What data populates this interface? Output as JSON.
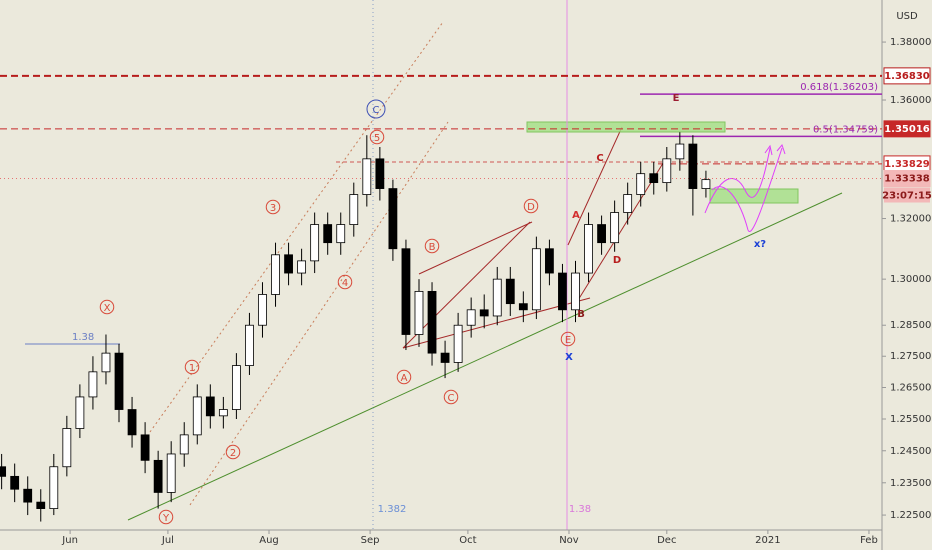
{
  "chart_data": {
    "type": "candlestick",
    "currency": "USD",
    "log": true,
    "ylim": [
      1.2204,
      1.3947
    ],
    "yticks": [
      {
        "value": 1.38,
        "label": "1.38000"
      },
      {
        "value": 1.36,
        "label": "1.36000"
      },
      {
        "value": 1.32,
        "label": "1.32000"
      },
      {
        "value": 1.3,
        "label": "1.30000"
      },
      {
        "value": 1.285,
        "label": "1.28500"
      },
      {
        "value": 1.275,
        "label": "1.27500"
      },
      {
        "value": 1.265,
        "label": "1.26500"
      },
      {
        "value": 1.255,
        "label": "1.25500"
      },
      {
        "value": 1.245,
        "label": "1.24500"
      },
      {
        "value": 1.235,
        "label": "1.23500"
      },
      {
        "value": 1.225,
        "label": "1.22500"
      }
    ],
    "xlim": [
      131.5,
      402
    ],
    "xticks": [
      {
        "value": 153,
        "label": "Jun"
      },
      {
        "value": 183,
        "label": "Jul"
      },
      {
        "value": 214,
        "label": "Aug"
      },
      {
        "value": 245,
        "label": "Sep"
      },
      {
        "value": 275,
        "label": "Oct"
      },
      {
        "value": 306,
        "label": "Nov"
      },
      {
        "value": 336,
        "label": "Dec"
      },
      {
        "value": 367,
        "label": "2021"
      },
      {
        "value": 398,
        "label": "Feb"
      }
    ],
    "up_color": "#ffffff",
    "down_color": "#000000",
    "x": [
      132,
      136,
      140,
      144,
      148,
      152,
      156,
      160,
      164,
      168,
      172,
      176,
      180,
      184,
      188,
      192,
      196,
      200,
      204,
      208,
      212,
      216,
      220,
      224,
      228,
      232,
      236,
      240,
      244,
      248,
      252,
      256,
      260,
      264,
      268,
      272,
      276,
      280,
      284,
      288,
      292,
      296,
      300,
      304,
      308,
      312,
      316,
      320,
      324,
      328,
      332,
      336,
      340,
      344,
      348
    ],
    "open": [
      1.24,
      1.237,
      1.233,
      1.229,
      1.227,
      1.24,
      1.252,
      1.262,
      1.27,
      1.276,
      1.258,
      1.25,
      1.242,
      1.232,
      1.244,
      1.25,
      1.262,
      1.256,
      1.258,
      1.272,
      1.285,
      1.295,
      1.308,
      1.302,
      1.306,
      1.318,
      1.312,
      1.318,
      1.328,
      1.34,
      1.33,
      1.31,
      1.282,
      1.296,
      1.276,
      1.273,
      1.285,
      1.29,
      1.288,
      1.3,
      1.292,
      1.29,
      1.31,
      1.302,
      1.29,
      1.302,
      1.318,
      1.312,
      1.322,
      1.328,
      1.335,
      1.332,
      1.34,
      1.345,
      1.33
    ],
    "high": [
      1.244,
      1.241,
      1.237,
      1.233,
      1.244,
      1.256,
      1.266,
      1.275,
      1.282,
      1.279,
      1.262,
      1.254,
      1.245,
      1.248,
      1.254,
      1.266,
      1.266,
      1.262,
      1.276,
      1.289,
      1.299,
      1.312,
      1.312,
      1.31,
      1.322,
      1.322,
      1.322,
      1.332,
      1.348,
      1.344,
      1.333,
      1.313,
      1.3,
      1.299,
      1.28,
      1.289,
      1.294,
      1.295,
      1.304,
      1.304,
      1.296,
      1.314,
      1.313,
      1.305,
      1.306,
      1.322,
      1.321,
      1.326,
      1.332,
      1.339,
      1.339,
      1.344,
      1.349,
      1.348,
      1.336
    ],
    "low": [
      1.233,
      1.229,
      1.225,
      1.223,
      1.225,
      1.237,
      1.249,
      1.258,
      1.266,
      1.254,
      1.246,
      1.238,
      1.227,
      1.229,
      1.24,
      1.247,
      1.252,
      1.252,
      1.255,
      1.269,
      1.281,
      1.291,
      1.298,
      1.298,
      1.302,
      1.308,
      1.308,
      1.314,
      1.324,
      1.326,
      1.306,
      1.277,
      1.278,
      1.272,
      1.268,
      1.27,
      1.281,
      1.284,
      1.285,
      1.288,
      1.286,
      1.287,
      1.298,
      1.286,
      1.286,
      1.299,
      1.308,
      1.309,
      1.318,
      1.324,
      1.328,
      1.329,
      1.336,
      1.321,
      1.327
    ],
    "close": [
      1.237,
      1.233,
      1.229,
      1.227,
      1.24,
      1.252,
      1.262,
      1.27,
      1.276,
      1.258,
      1.25,
      1.242,
      1.232,
      1.244,
      1.25,
      1.262,
      1.256,
      1.258,
      1.272,
      1.285,
      1.295,
      1.308,
      1.302,
      1.306,
      1.318,
      1.312,
      1.318,
      1.328,
      1.34,
      1.33,
      1.31,
      1.282,
      1.296,
      1.276,
      1.273,
      1.285,
      1.29,
      1.288,
      1.3,
      1.292,
      1.29,
      1.31,
      1.302,
      1.29,
      1.302,
      1.318,
      1.312,
      1.322,
      1.328,
      1.335,
      1.332,
      1.34,
      1.345,
      1.33,
      1.333
    ],
    "levels": [
      {
        "value": 1.3683,
        "label": "1.36830",
        "color": "#b71c1c",
        "style": "dashed"
      },
      {
        "value": 1.35016,
        "label": "1.35016",
        "color": "#c62828",
        "style": "dashed"
      },
      {
        "value": 1.33829,
        "label": "1.33829",
        "color": "#c62828",
        "style": "dashed"
      },
      {
        "value": 1.33338,
        "label": "1.33338",
        "color": "#e57373",
        "style": "dotted"
      }
    ],
    "countdown": "23:07:15",
    "fib": [
      {
        "value": 1.36203,
        "label": "0.618(1.36203)",
        "color": "#9c27b0"
      },
      {
        "value": 1.34759,
        "label": "0.5(1.34759)",
        "color": "#9c27b0"
      }
    ],
    "vline_labels": [
      {
        "label": "1.382",
        "color": "#6b8fd6"
      },
      {
        "label": "1.38",
        "color": "#d977d9"
      }
    ],
    "ref_label": "1.38",
    "annotations": [
      {
        "text": "X",
        "color": "#d84a3a",
        "circled": true
      },
      {
        "text": "1",
        "color": "#d84a3a",
        "circled": true
      },
      {
        "text": "2",
        "color": "#d84a3a",
        "circled": true
      },
      {
        "text": "3",
        "color": "#d84a3a",
        "circled": true
      },
      {
        "text": "4",
        "color": "#d84a3a",
        "circled": true
      },
      {
        "text": "5",
        "color": "#d84a3a",
        "circled": true
      },
      {
        "text": "C",
        "color": "#3f51b5",
        "circled": true
      },
      {
        "text": "Y",
        "color": "#d84a3a",
        "circled": true
      },
      {
        "text": "A",
        "color": "#d84a3a",
        "circled": true
      },
      {
        "text": "B",
        "color": "#d84a3a",
        "circled": true
      },
      {
        "text": "C",
        "color": "#d84a3a",
        "circled": true
      },
      {
        "text": "D",
        "color": "#d84a3a",
        "circled": true
      },
      {
        "text": "E",
        "color": "#d84a3a",
        "circled": true
      },
      {
        "text": "X",
        "color": "#1a3fd6",
        "circled": false
      },
      {
        "text": "A",
        "color": "#d32f2f",
        "circled": false
      },
      {
        "text": "C",
        "color": "#b71c1c",
        "circled": false
      },
      {
        "text": "B",
        "color": "#8b1a1a",
        "circled": false
      },
      {
        "text": "D",
        "color": "#b71c1c",
        "circled": false
      },
      {
        "text": "E",
        "color": "#9b1b30",
        "circled": false
      },
      {
        "text": "x?",
        "color": "#1a3fd6",
        "circled": false
      }
    ]
  }
}
